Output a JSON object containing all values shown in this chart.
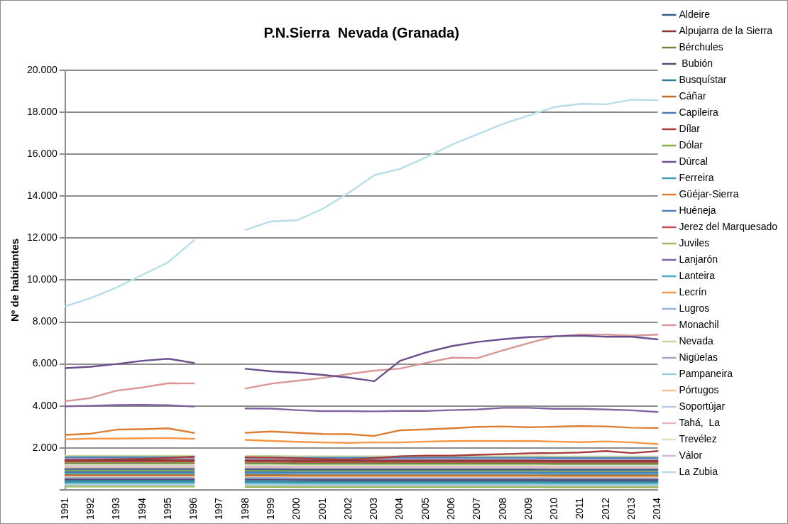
{
  "chart_data": {
    "type": "line",
    "title": "P.N.Sierra  Nevada (Granada)",
    "ylabel": "Nº de habitantes",
    "categories": [
      "1991",
      "1992",
      "1993",
      "1994",
      "1995",
      "1996",
      "1997",
      "1998",
      "1999",
      "2000",
      "2001",
      "2002",
      "2003",
      "2004",
      "2005",
      "2006",
      "2007",
      "2008",
      "2009",
      "2010",
      "2011",
      "2012",
      "2013",
      "2014"
    ],
    "ylim": [
      0,
      20000
    ],
    "yticks": [
      {
        "value": 0,
        "label": null
      },
      {
        "value": 2000,
        "label": "2.000"
      },
      {
        "value": 4000,
        "label": "4.000"
      },
      {
        "value": 6000,
        "label": "6.000"
      },
      {
        "value": 8000,
        "label": "8.000"
      },
      {
        "value": 10000,
        "label": "10.000"
      },
      {
        "value": 12000,
        "label": "12.000"
      },
      {
        "value": 14000,
        "label": "14.000"
      },
      {
        "value": 16000,
        "label": "16.000"
      },
      {
        "value": 18000,
        "label": "18.000"
      },
      {
        "value": 20000,
        "label": "20.000"
      }
    ],
    "grid": "y",
    "legend": "right",
    "marker": "none",
    "line_style": "solid",
    "series": [
      {
        "name": "Aldeire",
        "color": "#385d8a",
        "values": [
          990,
          990,
          990,
          990,
          990,
          990,
          null,
          980,
          980,
          970,
          970,
          970,
          970,
          970,
          970,
          970,
          970,
          970,
          970,
          960,
          960,
          960,
          960,
          960
        ]
      },
      {
        "name": "Alpujarra de la Sierra",
        "color": "#8c3836",
        "values": [
          1410,
          1410,
          1410,
          1410,
          1410,
          1410,
          null,
          1400,
          1400,
          1390,
          1390,
          1390,
          1390,
          1390,
          1390,
          1390,
          1390,
          1390,
          1390,
          1380,
          1380,
          1380,
          1380,
          1380
        ]
      },
      {
        "name": "Bérchules",
        "color": "#71893f",
        "values": [
          1270,
          1270,
          1270,
          1270,
          1270,
          1270,
          null,
          1260,
          1260,
          1250,
          1250,
          1250,
          1250,
          1250,
          1250,
          1250,
          1250,
          1250,
          1250,
          1240,
          1240,
          1240,
          1240,
          1240
        ]
      },
      {
        "name": " Bubión",
        "color": "#5c4776",
        "values": [
          500,
          500,
          500,
          500,
          500,
          500,
          null,
          490,
          490,
          480,
          480,
          480,
          480,
          480,
          480,
          480,
          480,
          480,
          480,
          470,
          470,
          470,
          470,
          470
        ]
      },
      {
        "name": "Busquístar",
        "color": "#31849b",
        "values": [
          430,
          430,
          430,
          430,
          430,
          430,
          null,
          420,
          420,
          410,
          410,
          410,
          410,
          410,
          410,
          410,
          410,
          410,
          410,
          400,
          400,
          400,
          400,
          400
        ]
      },
      {
        "name": "Cáñar",
        "color": "#b66d31",
        "values": [
          710,
          710,
          710,
          710,
          710,
          710,
          null,
          700,
          700,
          690,
          690,
          690,
          690,
          690,
          690,
          690,
          690,
          690,
          690,
          680,
          680,
          680,
          680,
          680
        ]
      },
      {
        "name": "Capileira",
        "color": "#4a7ebb",
        "values": [
          850,
          850,
          850,
          850,
          850,
          850,
          null,
          840,
          840,
          830,
          830,
          830,
          830,
          830,
          830,
          830,
          830,
          830,
          830,
          820,
          820,
          820,
          820,
          820
        ]
      },
      {
        "name": "Dílar",
        "color": "#a83e3c",
        "values": [
          1420,
          1430,
          1450,
          1480,
          1520,
          1580,
          null,
          1550,
          1540,
          1500,
          1470,
          1440,
          1510,
          1600,
          1630,
          1630,
          1670,
          1700,
          1740,
          1750,
          1780,
          1850,
          1750,
          1850
        ]
      },
      {
        "name": "Dólar",
        "color": "#8aa94a",
        "values": [
          920,
          920,
          920,
          920,
          920,
          920,
          null,
          910,
          910,
          900,
          900,
          900,
          900,
          900,
          900,
          900,
          900,
          900,
          900,
          890,
          890,
          890,
          890,
          890
        ]
      },
      {
        "name": "Dúrcal",
        "color": "#6a4f8e",
        "values": [
          5800,
          5870,
          6000,
          6150,
          6250,
          6050,
          null,
          5770,
          5650,
          5580,
          5480,
          5350,
          5180,
          6150,
          6550,
          6850,
          7050,
          7180,
          7280,
          7320,
          7350,
          7300,
          7300,
          7170
        ]
      },
      {
        "name": "Ferreira",
        "color": "#3e9db3",
        "values": [
          360,
          360,
          360,
          360,
          360,
          360,
          null,
          350,
          350,
          340,
          340,
          340,
          340,
          340,
          340,
          340,
          340,
          340,
          340,
          330,
          330,
          330,
          330,
          330
        ]
      },
      {
        "name": "Güéjar-Sierra",
        "color": "#dd8036",
        "values": [
          2620,
          2680,
          2870,
          2890,
          2930,
          2710,
          null,
          2720,
          2780,
          2720,
          2660,
          2650,
          2570,
          2840,
          2880,
          2930,
          3000,
          3020,
          2980,
          3010,
          3040,
          3020,
          2960,
          2950
        ]
      },
      {
        "name": "Huéneja",
        "color": "#4f81bd",
        "values": [
          1550,
          1550,
          1550,
          1550,
          1550,
          1550,
          null,
          1540,
          1540,
          1530,
          1530,
          1530,
          1530,
          1530,
          1530,
          1530,
          1530,
          1530,
          1530,
          1520,
          1520,
          1520,
          1520,
          1520
        ]
      },
      {
        "name": "Jerez del Marquesado",
        "color": "#c0504d",
        "values": [
          1340,
          1340,
          1340,
          1340,
          1340,
          1340,
          null,
          1330,
          1330,
          1320,
          1320,
          1320,
          1320,
          1320,
          1320,
          1320,
          1320,
          1320,
          1320,
          1310,
          1310,
          1310,
          1310,
          1310
        ]
      },
      {
        "name": "Juviles",
        "color": "#9bbb59",
        "values": [
          150,
          150,
          150,
          150,
          150,
          150,
          null,
          140,
          140,
          130,
          130,
          130,
          130,
          130,
          130,
          130,
          130,
          130,
          130,
          120,
          120,
          120,
          120,
          120
        ]
      },
      {
        "name": "Lanjarón",
        "color": "#8064a2",
        "values": [
          3980,
          4010,
          4040,
          4050,
          4030,
          3970,
          null,
          3880,
          3870,
          3800,
          3750,
          3750,
          3740,
          3760,
          3760,
          3800,
          3830,
          3910,
          3910,
          3860,
          3860,
          3830,
          3790,
          3710
        ]
      },
      {
        "name": "Lanteira",
        "color": "#4bacc6",
        "values": [
          780,
          780,
          780,
          780,
          780,
          780,
          null,
          770,
          770,
          760,
          760,
          760,
          760,
          760,
          760,
          760,
          760,
          760,
          760,
          750,
          750,
          750,
          750,
          750
        ]
      },
      {
        "name": "Lecrín",
        "color": "#f79646",
        "values": [
          2410,
          2440,
          2440,
          2460,
          2470,
          2430,
          null,
          2380,
          2330,
          2290,
          2260,
          2240,
          2260,
          2260,
          2300,
          2320,
          2330,
          2320,
          2330,
          2300,
          2270,
          2310,
          2260,
          2180
        ]
      },
      {
        "name": "Lugros",
        "color": "#95b3d7",
        "values": [
          570,
          570,
          570,
          570,
          570,
          570,
          null,
          560,
          560,
          550,
          550,
          550,
          550,
          550,
          550,
          550,
          550,
          550,
          550,
          540,
          540,
          540,
          540,
          540
        ]
      },
      {
        "name": "Monachil",
        "color": "#d99694",
        "values": [
          4220,
          4380,
          4730,
          4880,
          5080,
          5070,
          null,
          4830,
          5060,
          5200,
          5330,
          5520,
          5680,
          5780,
          6050,
          6300,
          6280,
          6650,
          7000,
          7320,
          7400,
          7400,
          7350,
          7400
        ]
      },
      {
        "name": "Nevada",
        "color": "#c3d69b",
        "values": [
          1620,
          1620,
          1620,
          1620,
          1620,
          1620,
          null,
          1610,
          1610,
          1600,
          1600,
          1600,
          1600,
          1600,
          1600,
          1600,
          1600,
          1600,
          1600,
          1590,
          1590,
          1590,
          1590,
          1590
        ]
      },
      {
        "name": "Nigüelas",
        "color": "#b3a2c7",
        "values": [
          1480,
          1480,
          1480,
          1480,
          1480,
          1480,
          null,
          1470,
          1470,
          1460,
          1460,
          1460,
          1460,
          1460,
          1460,
          1460,
          1460,
          1460,
          1460,
          1450,
          1450,
          1450,
          1450,
          1450
        ]
      },
      {
        "name": "Pampaneira",
        "color": "#93cddd",
        "values": [
          290,
          290,
          290,
          290,
          290,
          290,
          null,
          280,
          280,
          270,
          270,
          270,
          270,
          270,
          270,
          270,
          270,
          270,
          270,
          260,
          260,
          260,
          260,
          260
        ]
      },
      {
        "name": "Pórtugos",
        "color": "#fac08f",
        "values": [
          640,
          640,
          640,
          640,
          640,
          640,
          null,
          630,
          630,
          620,
          620,
          620,
          620,
          620,
          620,
          620,
          620,
          620,
          620,
          610,
          610,
          610,
          610,
          610
        ]
      },
      {
        "name": "Soportújar",
        "color": "#b9c7e0",
        "values": [
          220,
          220,
          220,
          220,
          220,
          220,
          null,
          210,
          210,
          200,
          200,
          200,
          200,
          200,
          200,
          200,
          200,
          200,
          200,
          190,
          190,
          190,
          190,
          190
        ]
      },
      {
        "name": "Tahá,  La",
        "color": "#e6b9b8",
        "values": [
          1060,
          1060,
          1060,
          1060,
          1060,
          1060,
          null,
          1050,
          1050,
          1040,
          1040,
          1040,
          1040,
          1040,
          1040,
          1040,
          1040,
          1040,
          1040,
          1030,
          1030,
          1030,
          1030,
          1030
        ]
      },
      {
        "name": "Trevélez",
        "color": "#d7e4bd",
        "values": [
          1200,
          1200,
          1200,
          1200,
          1200,
          1200,
          null,
          1190,
          1190,
          1180,
          1180,
          1180,
          1180,
          1180,
          1180,
          1180,
          1180,
          1180,
          1180,
          1170,
          1170,
          1170,
          1170,
          1170
        ]
      },
      {
        "name": "Válor",
        "color": "#ccc1da",
        "values": [
          1130,
          1130,
          1130,
          1130,
          1130,
          1130,
          null,
          1120,
          1120,
          1110,
          1110,
          1110,
          1110,
          1110,
          1110,
          1110,
          1110,
          1110,
          1110,
          1100,
          1100,
          1100,
          1100,
          1100
        ]
      },
      {
        "name": "La Zubia",
        "color": "#b7dee8",
        "values": [
          8750,
          9150,
          9650,
          10250,
          10850,
          11900,
          null,
          12400,
          12800,
          12850,
          13400,
          14150,
          15000,
          15300,
          15850,
          16450,
          16950,
          17450,
          17850,
          18250,
          18400,
          18380,
          18600,
          18570
        ]
      }
    ]
  }
}
